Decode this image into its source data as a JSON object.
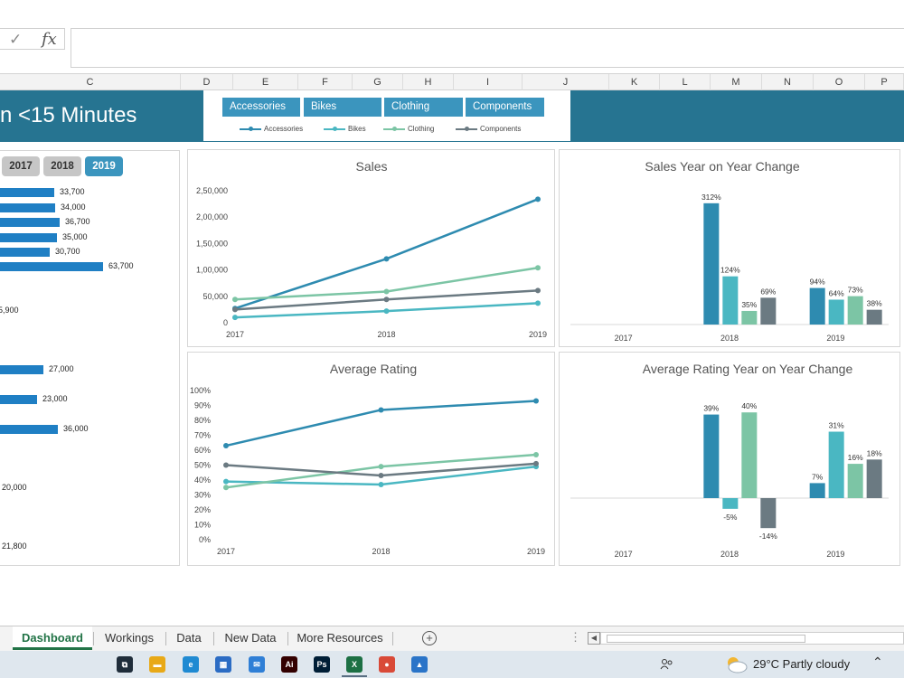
{
  "formula_bar": {
    "check_symbol": "✓",
    "fx_symbol": "fx",
    "formula_value": ""
  },
  "columns": [
    "C",
    "D",
    "E",
    "F",
    "G",
    "H",
    "I",
    "J",
    "K",
    "L",
    "M",
    "N",
    "O",
    "P"
  ],
  "banner": {
    "title": "n <15 Minutes"
  },
  "slicer": {
    "buttons": [
      "Accessories",
      "Bikes",
      "Clothing",
      "Components"
    ],
    "legend": [
      {
        "name": "Accessories",
        "color": "#2e8bb0"
      },
      {
        "name": "Bikes",
        "color": "#4ab7c2"
      },
      {
        "name": "Clothing",
        "color": "#7cc5a5"
      },
      {
        "name": "Components",
        "color": "#6b7a82"
      }
    ]
  },
  "year_filter": {
    "years": [
      "2017",
      "2018",
      "2019"
    ],
    "selected": "2019"
  },
  "left_bars": [
    {
      "label": "33,700",
      "value": 33700
    },
    {
      "label": "34,000",
      "value": 34000
    },
    {
      "label": "36,700",
      "value": 36700
    },
    {
      "label": "35,000",
      "value": 35000
    },
    {
      "label": "30,700",
      "value": 30700
    },
    {
      "label": "63,700",
      "value": 63700
    },
    {
      "label": "5,900",
      "value": 5900
    },
    {
      "label": "27,000",
      "value": 27000
    },
    {
      "label": "23,000",
      "value": 23000
    },
    {
      "label": "36,000",
      "value": 36000
    },
    {
      "label": "20,000",
      "value": 20000
    },
    {
      "label": "21,800",
      "value": 21800
    }
  ],
  "chart_data": [
    {
      "type": "line",
      "title": "Sales",
      "x": [
        "2017",
        "2018",
        "2019"
      ],
      "ylim": [
        0,
        250000
      ],
      "yticks": [
        "0",
        "50,000",
        "1,00,000",
        "1,50,000",
        "2,00,000",
        "2,50,000"
      ],
      "series": [
        {
          "name": "Accessories",
          "values": [
            27000,
            121000,
            234000
          ]
        },
        {
          "name": "Bikes",
          "values": [
            10000,
            22000,
            37000
          ]
        },
        {
          "name": "Clothing",
          "values": [
            44000,
            59000,
            104000
          ]
        },
        {
          "name": "Components",
          "values": [
            25000,
            44000,
            61000
          ]
        }
      ]
    },
    {
      "type": "bar",
      "title": "Sales Year on Year Change",
      "categories": [
        "2017",
        "2018",
        "2019"
      ],
      "series": [
        {
          "name": "Accessories",
          "values": [
            null,
            312,
            94
          ],
          "labels": [
            "",
            "312%",
            "94%"
          ]
        },
        {
          "name": "Bikes",
          "values": [
            null,
            124,
            64
          ],
          "labels": [
            "",
            "124%",
            "64%"
          ]
        },
        {
          "name": "Clothing",
          "values": [
            null,
            35,
            73
          ],
          "labels": [
            "",
            "35%",
            "73%"
          ]
        },
        {
          "name": "Components",
          "values": [
            null,
            69,
            38
          ],
          "labels": [
            "",
            "69%",
            "38%"
          ]
        }
      ]
    },
    {
      "type": "line",
      "title": "Average Rating",
      "x": [
        "2017",
        "2018",
        "2019"
      ],
      "ylim": [
        0,
        100
      ],
      "yticks": [
        "0%",
        "10%",
        "20%",
        "30%",
        "40%",
        "50%",
        "60%",
        "70%",
        "80%",
        "90%",
        "100%"
      ],
      "series": [
        {
          "name": "Accessories",
          "values": [
            63,
            87,
            93
          ]
        },
        {
          "name": "Bikes",
          "values": [
            39,
            37,
            49
          ]
        },
        {
          "name": "Clothing",
          "values": [
            35,
            49,
            57
          ]
        },
        {
          "name": "Components",
          "values": [
            50,
            43,
            51
          ]
        }
      ]
    },
    {
      "type": "bar",
      "title": "Average Rating Year on Year Change",
      "categories": [
        "2017",
        "2018",
        "2019"
      ],
      "series": [
        {
          "name": "Accessories",
          "values": [
            null,
            39,
            7
          ],
          "labels": [
            "",
            "39%",
            "7%"
          ]
        },
        {
          "name": "Bikes",
          "values": [
            null,
            -5,
            31
          ],
          "labels": [
            "",
            "-5%",
            "31%"
          ]
        },
        {
          "name": "Clothing",
          "values": [
            null,
            40,
            16
          ],
          "labels": [
            "",
            "40%",
            "16%"
          ]
        },
        {
          "name": "Components",
          "values": [
            null,
            -14,
            18
          ],
          "labels": [
            "",
            "-14%",
            "18%"
          ]
        }
      ]
    }
  ],
  "sheet_tabs": [
    {
      "label": "Dashboard",
      "active": true
    },
    {
      "label": "Workings",
      "active": false
    },
    {
      "label": "Data",
      "active": false
    },
    {
      "label": "New Data",
      "active": false
    },
    {
      "label": "More Resources",
      "active": false
    }
  ],
  "tabs_extra": {
    "add_symbol": "+",
    "dots": "⋮",
    "scroll_left": "◀"
  },
  "taskbar": {
    "icons": [
      {
        "name": "task-view-icon",
        "color": "#1f2d3a",
        "text": "⧉"
      },
      {
        "name": "file-explorer-icon",
        "color": "#e8a917",
        "text": "▬"
      },
      {
        "name": "edge-icon",
        "color": "#1f8ad2",
        "text": "e"
      },
      {
        "name": "store-icon",
        "color": "#2b6cc4",
        "text": "▦"
      },
      {
        "name": "mail-icon",
        "color": "#2f7fd6",
        "text": "✉"
      },
      {
        "name": "illustrator-icon",
        "color": "#330000",
        "text": "Ai"
      },
      {
        "name": "photoshop-icon",
        "color": "#001e36",
        "text": "Ps"
      },
      {
        "name": "excel-icon",
        "color": "#1d7044",
        "text": "X"
      },
      {
        "name": "chrome-icon",
        "color": "#d94a38",
        "text": "●"
      },
      {
        "name": "photos-icon",
        "color": "#2a74c8",
        "text": "▲"
      }
    ],
    "weather": "29°C  Partly cloudy",
    "tray_chevron": "⌃"
  },
  "colors": {
    "accent": "#267491",
    "accessories": "#2e8bb0",
    "bikes": "#4ab7c2",
    "clothing": "#7cc5a5",
    "components": "#6b7a82",
    "hbar": "#1f7fc4"
  }
}
